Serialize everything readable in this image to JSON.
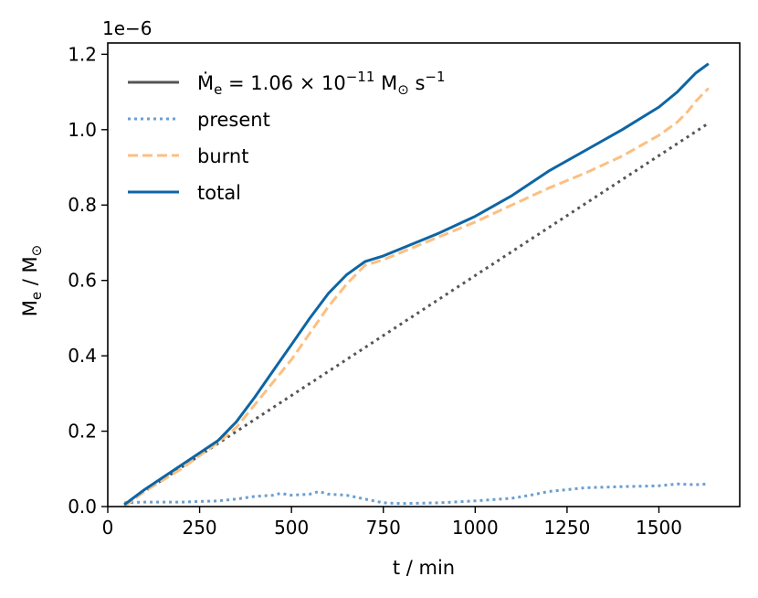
{
  "chart_data": {
    "type": "line",
    "title": "",
    "xlabel": "t / min",
    "ylabel_main": "M",
    "ylabel_sub": "e",
    "ylabel_rest": " / M",
    "ylabel_sun": "⊙",
    "offset_text": "1e−6",
    "xlim": [
      0,
      1720
    ],
    "ylim": [
      0,
      1.23
    ],
    "x_ticks": [
      0,
      250,
      500,
      750,
      1000,
      1250,
      1500
    ],
    "x_tick_labels": [
      "0",
      "250",
      "500",
      "750",
      "1000",
      "1250",
      "1500"
    ],
    "y_ticks": [
      0.0,
      0.2,
      0.4,
      0.6,
      0.8,
      1.0,
      1.2
    ],
    "y_tick_labels": [
      "0.0",
      "0.2",
      "0.4",
      "0.6",
      "0.8",
      "1.0",
      "1.2"
    ],
    "grid": false,
    "legend_position": "top-left",
    "legend": {
      "rate_label": "Ṁ",
      "rate_sub": "e",
      "rate_eq": " = 1.06 × 10",
      "rate_exp": "−11",
      "rate_unit": " M",
      "rate_sun": "⊙",
      "rate_s": " s",
      "rate_s_exp": "−1",
      "present": "present",
      "burnt": "burnt",
      "total": "total"
    },
    "series": [
      {
        "name": "rate",
        "style": "dotted-dark",
        "x": [
          45,
          1635
        ],
        "y": [
          0.005,
          1.017
        ]
      },
      {
        "name": "present",
        "style": "dotted-blue",
        "x": [
          45,
          100,
          200,
          300,
          350,
          400,
          450,
          470,
          500,
          550,
          575,
          600,
          650,
          700,
          750,
          800,
          900,
          1000,
          1100,
          1150,
          1200,
          1250,
          1300,
          1400,
          1500,
          1550,
          1600,
          1635
        ],
        "y": [
          0.01,
          0.012,
          0.012,
          0.015,
          0.02,
          0.027,
          0.03,
          0.035,
          0.03,
          0.033,
          0.04,
          0.033,
          0.03,
          0.02,
          0.01,
          0.008,
          0.01,
          0.015,
          0.022,
          0.03,
          0.04,
          0.045,
          0.05,
          0.053,
          0.055,
          0.06,
          0.058,
          0.06
        ]
      },
      {
        "name": "burnt",
        "style": "dashed-orange",
        "x": [
          45,
          100,
          200,
          300,
          350,
          400,
          450,
          500,
          550,
          600,
          650,
          700,
          750,
          800,
          900,
          1000,
          1100,
          1200,
          1300,
          1400,
          1500,
          1550,
          1580,
          1600,
          1635
        ],
        "y": [
          0.0,
          0.04,
          0.1,
          0.17,
          0.21,
          0.27,
          0.33,
          0.39,
          0.46,
          0.53,
          0.59,
          0.64,
          0.655,
          0.675,
          0.715,
          0.755,
          0.8,
          0.845,
          0.885,
          0.93,
          0.985,
          1.02,
          1.05,
          1.075,
          1.11
        ]
      },
      {
        "name": "total",
        "style": "solid-blue",
        "x": [
          45,
          100,
          200,
          300,
          350,
          400,
          450,
          500,
          550,
          600,
          650,
          700,
          750,
          800,
          900,
          1000,
          1100,
          1200,
          1300,
          1400,
          1500,
          1550,
          1580,
          1600,
          1635
        ],
        "y": [
          0.005,
          0.045,
          0.11,
          0.175,
          0.225,
          0.29,
          0.36,
          0.43,
          0.5,
          0.565,
          0.615,
          0.65,
          0.665,
          0.685,
          0.725,
          0.77,
          0.825,
          0.89,
          0.945,
          1.0,
          1.06,
          1.1,
          1.13,
          1.15,
          1.175
        ]
      }
    ]
  },
  "colors": {
    "rate": "#555555",
    "present": "#6a9fd0",
    "burnt": "#fdbf81",
    "total": "#0d65a4",
    "axis": "#000000"
  }
}
